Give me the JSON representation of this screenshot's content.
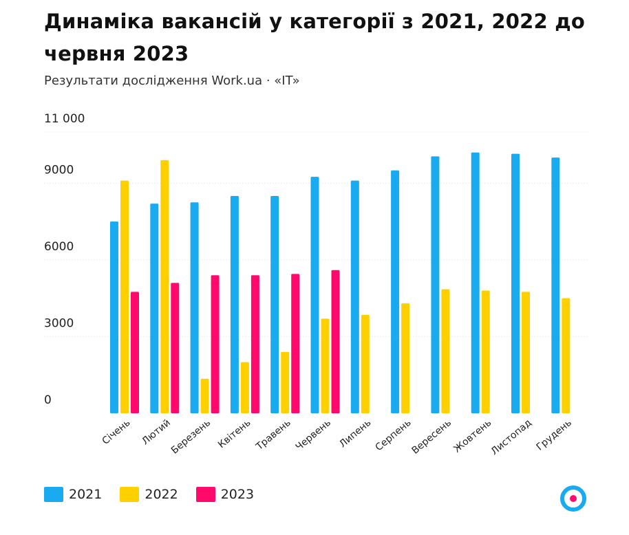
{
  "title": "Динаміка вакансій у категорії з 2021, 2022 до червня 2023",
  "subtitle": "Результати дослідження Work.ua · «IT»",
  "logo_icon": "work-ua-logo-icon",
  "chart_data": {
    "type": "bar",
    "title": "Динаміка вакансій у категорії з 2021, 2022 до червня 2023",
    "subtitle": "Результати дослідження Work.ua · «IT»",
    "categories": [
      "Січень",
      "Лютий",
      "Березень",
      "Квітень",
      "Травень",
      "Червень",
      "Липень",
      "Серпень",
      "Вересень",
      "Жовтень",
      "Листопад",
      "Грудень"
    ],
    "series": [
      {
        "name": "2021",
        "color": "#1aaaf0",
        "values": [
          7500,
          8200,
          8250,
          8500,
          8500,
          9250,
          9100,
          9500,
          10050,
          10200,
          10150,
          10000
        ]
      },
      {
        "name": "2022",
        "color": "#ffd000",
        "values": [
          9100,
          9900,
          1350,
          2000,
          2400,
          3700,
          3850,
          4300,
          4850,
          4800,
          4750,
          4500
        ]
      },
      {
        "name": "2023",
        "color": "#ff0a6c",
        "values": [
          4750,
          5100,
          5400,
          5400,
          5450,
          5600,
          null,
          null,
          null,
          null,
          null,
          null
        ]
      }
    ],
    "y_ticks": [
      "0",
      "3000",
      "6000",
      "9000",
      "11 000"
    ],
    "y_tick_values": [
      0,
      3000,
      6000,
      9000,
      11000
    ],
    "ylim": [
      0,
      11000
    ],
    "grid": true,
    "legend": "bottom-left"
  }
}
